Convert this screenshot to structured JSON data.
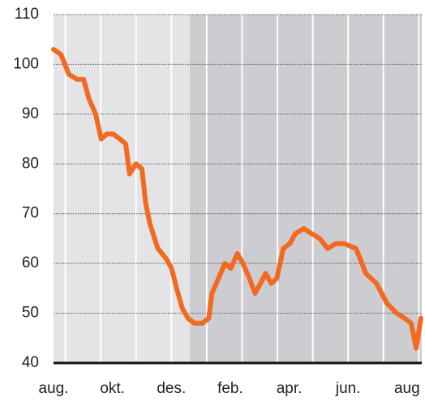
{
  "chart_data": {
    "type": "line",
    "x": [
      0,
      0.25,
      0.52,
      0.8,
      1.02,
      1.21,
      1.43,
      1.62,
      1.81,
      2.03,
      2.25,
      2.45,
      2.58,
      2.8,
      3.0,
      3.13,
      3.27,
      3.54,
      3.82,
      4.01,
      4.18,
      4.37,
      4.56,
      4.78,
      5.05,
      5.27,
      5.38,
      5.6,
      5.82,
      6.02,
      6.24,
      6.43,
      6.65,
      6.84,
      7.03,
      7.2,
      7.39,
      7.58,
      7.8,
      8.02,
      8.21,
      8.49,
      8.76,
      9.04,
      9.31,
      9.59,
      9.86,
      10.27,
      10.6,
      10.96,
      11.32,
      11.65,
      11.92,
      12.14,
      12.31,
      12.47
    ],
    "values": [
      103,
      102,
      98,
      97,
      97,
      93,
      90,
      85,
      86,
      86,
      85,
      84,
      78,
      80,
      79,
      72,
      68,
      63,
      61,
      59,
      55,
      51,
      49,
      48,
      48,
      49,
      54,
      57,
      60,
      59,
      62,
      60,
      57,
      54,
      56,
      58,
      56,
      57,
      63,
      64,
      66,
      67,
      66,
      65,
      63,
      64,
      64,
      63,
      58,
      56,
      52,
      50,
      49,
      48,
      43,
      49
    ],
    "color": "#f26a21",
    "xlim": [
      0,
      12.5
    ],
    "xticks": [
      {
        "value": 0,
        "label": "aug."
      },
      {
        "value": 2,
        "label": "okt."
      },
      {
        "value": 4,
        "label": "des."
      },
      {
        "value": 6,
        "label": "feb."
      },
      {
        "value": 8,
        "label": "apr."
      },
      {
        "value": 10,
        "label": "jun."
      },
      {
        "value": 12,
        "label": "aug"
      }
    ],
    "ylim": [
      40,
      110
    ],
    "yticks": [
      40,
      50,
      60,
      70,
      80,
      90,
      100,
      110
    ],
    "grid": true
  }
}
